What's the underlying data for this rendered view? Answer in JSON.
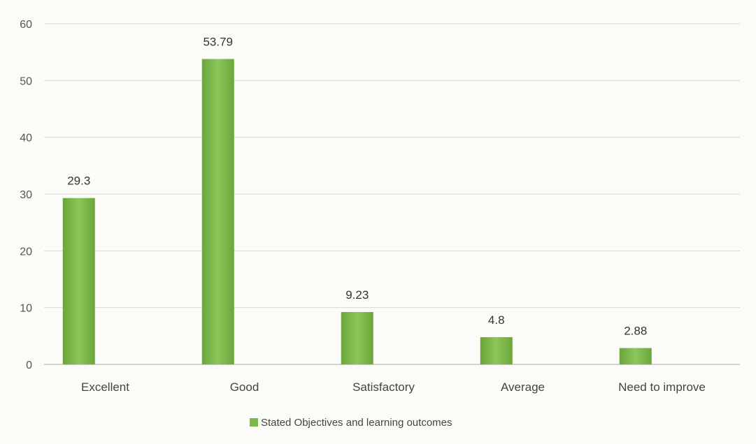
{
  "chart_data": {
    "type": "bar",
    "categories": [
      "Excellent",
      "Good",
      "Satisfactory",
      "Average",
      "Need to improve"
    ],
    "series": [
      {
        "name": "Stated Objectives and learning outcomes",
        "values": [
          29.3,
          53.79,
          9.23,
          4.8,
          2.88
        ],
        "value_labels": [
          "29.3",
          "53.79",
          "9.23",
          "4.8",
          "2.88"
        ],
        "color": "#7db84a"
      }
    ],
    "ylim": [
      0,
      60
    ],
    "yticks": [
      0,
      10,
      20,
      30,
      40,
      50,
      60
    ],
    "grid": true,
    "legend_position": "bottom",
    "title": "",
    "xlabel": "",
    "ylabel": ""
  }
}
